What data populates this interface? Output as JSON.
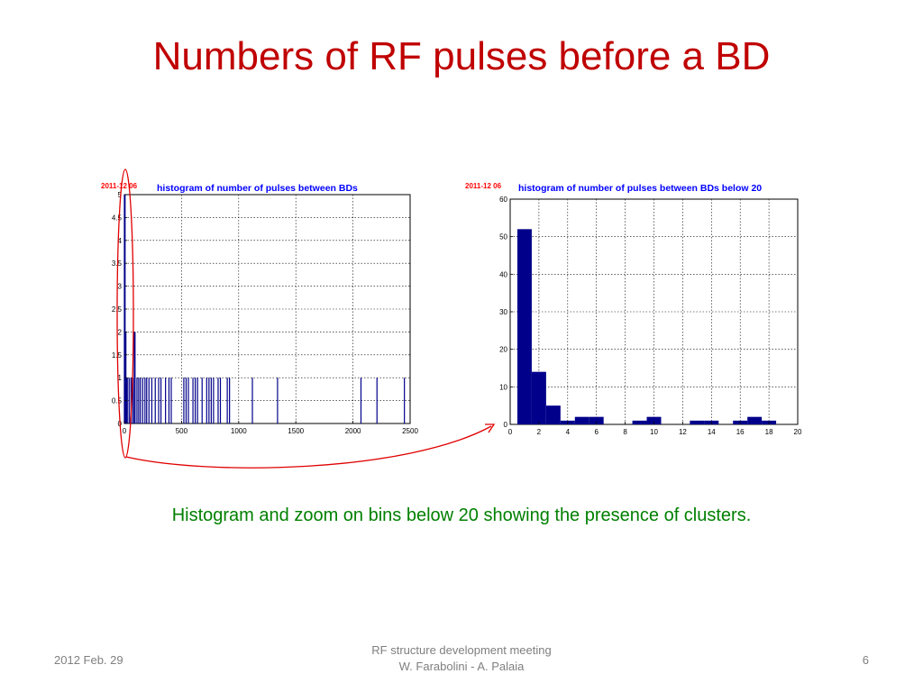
{
  "slide": {
    "title": "Numbers of RF pulses before a BD",
    "caption": "Histogram and zoom on bins below 20 showing the presence of clusters.",
    "footer_left": "2012 Feb. 29",
    "footer_center_line1": "RF structure development meeting",
    "footer_center_line2": "W. Farabolini - A. Palaia",
    "page_number": "6"
  },
  "colors": {
    "title": "#c00000",
    "caption": "#008000",
    "bars": "#00008b",
    "plot_title": "#0000ff",
    "date_label": "#ff0000",
    "annotation": "#e00000"
  },
  "chart_data": [
    {
      "type": "bar",
      "date_label": "2011-12 06",
      "title": "histogram of number of pulses between BDs",
      "xlabel": "",
      "ylabel": "",
      "xlim": [
        0,
        2500
      ],
      "ylim": [
        0,
        5
      ],
      "grid": true,
      "x_ticks": [
        0,
        500,
        1000,
        1500,
        2000,
        2500
      ],
      "y_ticks": [
        0,
        0.5,
        1,
        1.5,
        2,
        2.5,
        3,
        3.5,
        4,
        4.5,
        5
      ],
      "y_tick_labels": [
        "0",
        "0.5",
        "1",
        "1.5",
        "2",
        "2.5",
        "3",
        "3.5",
        "4",
        "4.5",
        "5"
      ],
      "x_values": [
        2,
        3,
        5,
        10,
        15,
        20,
        30,
        45,
        60,
        75,
        90,
        110,
        125,
        140,
        160,
        180,
        195,
        215,
        240,
        270,
        300,
        320,
        360,
        390,
        410,
        520,
        540,
        560,
        600,
        620,
        640,
        680,
        720,
        740,
        760,
        780,
        820,
        840,
        900,
        920,
        1120,
        1340,
        2070,
        2210,
        2450
      ],
      "counts": [
        1,
        5,
        1,
        2,
        1,
        1,
        1,
        1,
        1,
        1,
        2,
        1,
        1,
        1,
        1,
        1,
        1,
        1,
        1,
        1,
        1,
        1,
        1,
        1,
        1,
        1,
        1,
        1,
        1,
        1,
        1,
        1,
        1,
        1,
        1,
        1,
        1,
        1,
        1,
        1,
        1,
        1,
        1,
        1,
        1
      ]
    },
    {
      "type": "bar",
      "date_label": "2011-12 06",
      "title": "histogram of number of pulses between BDs below 20",
      "xlabel": "",
      "ylabel": "",
      "xlim": [
        0,
        20
      ],
      "ylim": [
        0,
        60
      ],
      "grid": true,
      "x_ticks": [
        0,
        2,
        4,
        6,
        8,
        10,
        12,
        14,
        16,
        18,
        20
      ],
      "y_ticks": [
        0,
        10,
        20,
        30,
        40,
        50,
        60
      ],
      "y_tick_labels": [
        "0",
        "10",
        "20",
        "30",
        "40",
        "50",
        "60"
      ],
      "bin_width": 1,
      "categories": [
        "1",
        "2",
        "3",
        "4",
        "5",
        "6",
        "7",
        "8",
        "9",
        "10",
        "11",
        "12",
        "13",
        "14",
        "15",
        "16",
        "17",
        "18",
        "19"
      ],
      "values": [
        52,
        14,
        5,
        1,
        2,
        2,
        0,
        0,
        1,
        2,
        0,
        0,
        1,
        1,
        0,
        1,
        2,
        1,
        0
      ]
    }
  ]
}
